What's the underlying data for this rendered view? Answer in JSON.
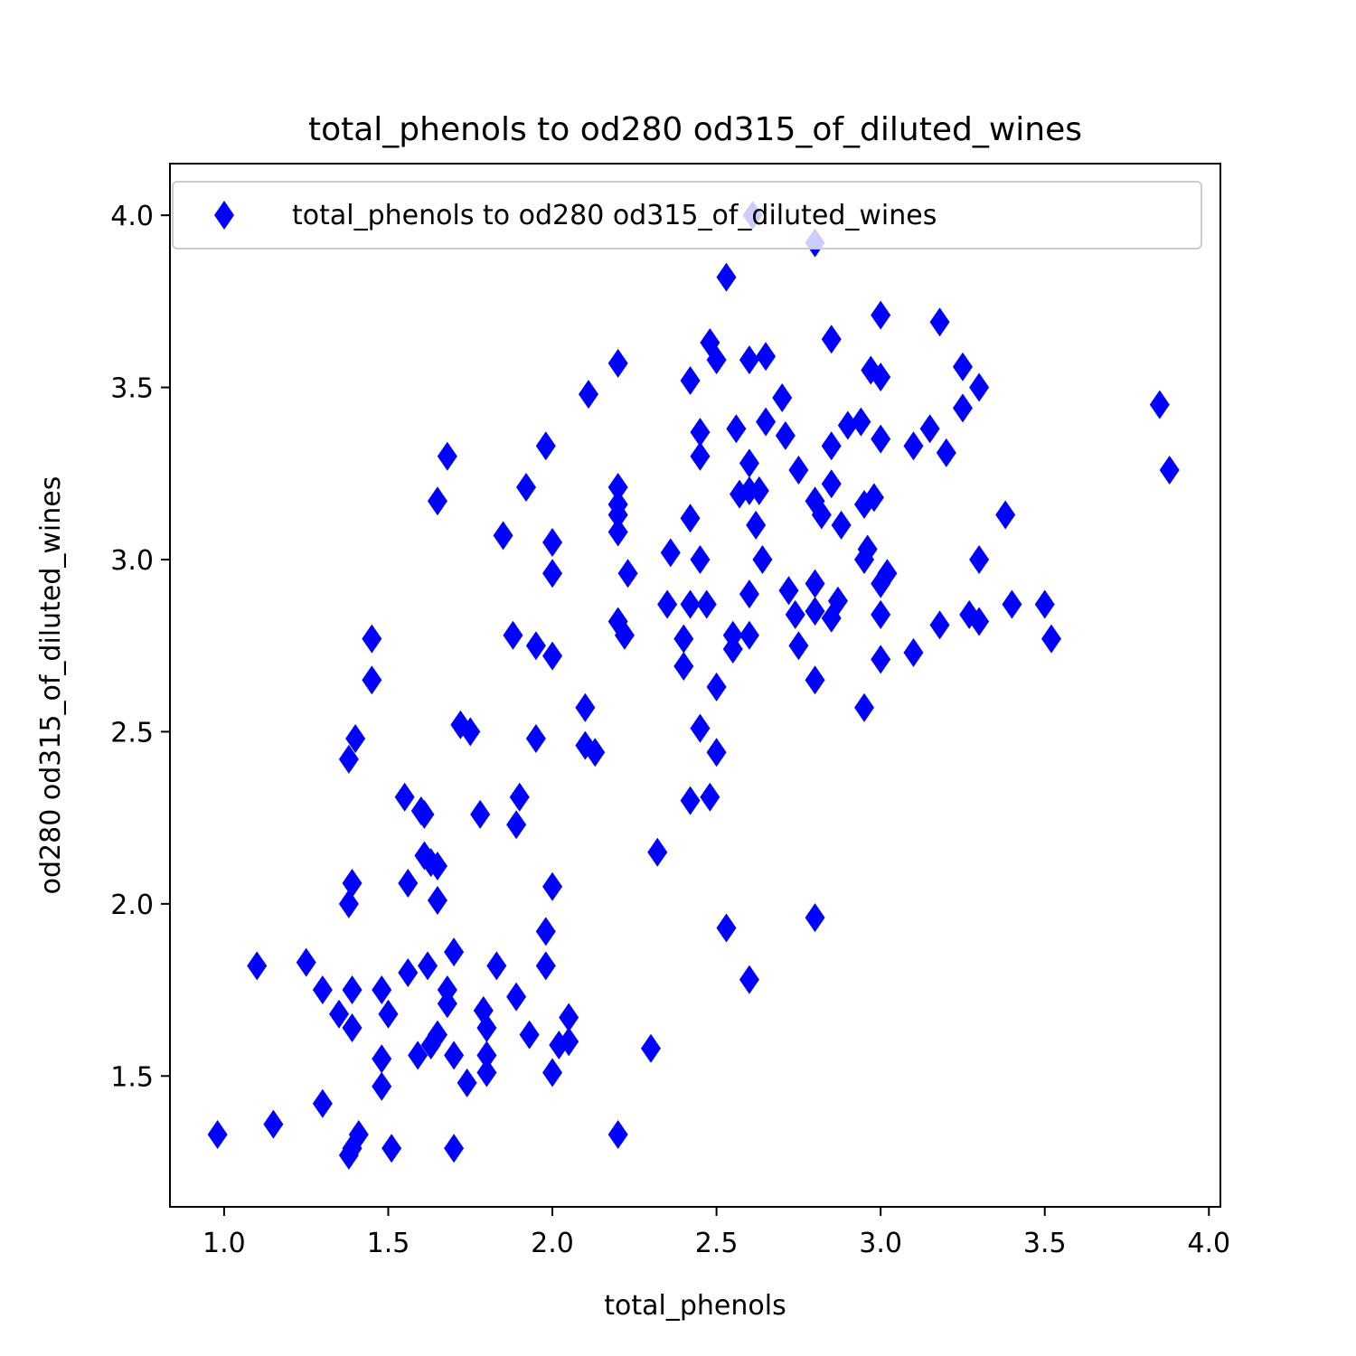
{
  "chart_data": {
    "type": "scatter",
    "title": "total_phenols to od280 od315_of_diluted_wines",
    "xlabel": "total_phenols",
    "ylabel": "od280 od315_of_diluted_wines",
    "xlim": [
      0.835,
      4.035
    ],
    "ylim": [
      1.12,
      4.15
    ],
    "xticks": [
      "1.0",
      "1.5",
      "2.0",
      "2.5",
      "3.0",
      "3.5",
      "4.0"
    ],
    "yticks": [
      "1.5",
      "2.0",
      "2.5",
      "3.0",
      "3.5",
      "4.0"
    ],
    "grid": false,
    "legend_position": "top-right",
    "marker": "thin-diamond",
    "colors": {
      "series": "#0000ff",
      "axes": "#000000",
      "background": "#ffffff"
    },
    "series": [
      {
        "name": "total_phenols to od280 od315_of_diluted_wines",
        "points": [
          [
            2.61,
            4.0
          ],
          [
            2.8,
            3.92
          ],
          [
            2.53,
            3.82
          ],
          [
            3.0,
            3.71
          ],
          [
            3.18,
            3.69
          ],
          [
            2.85,
            3.64
          ],
          [
            2.48,
            3.63
          ],
          [
            2.5,
            3.58
          ],
          [
            2.6,
            3.58
          ],
          [
            2.65,
            3.59
          ],
          [
            2.2,
            3.57
          ],
          [
            3.25,
            3.56
          ],
          [
            2.97,
            3.55
          ],
          [
            3.0,
            3.53
          ],
          [
            2.42,
            3.52
          ],
          [
            3.3,
            3.5
          ],
          [
            2.11,
            3.48
          ],
          [
            2.7,
            3.47
          ],
          [
            3.25,
            3.44
          ],
          [
            3.85,
            3.45
          ],
          [
            2.65,
            3.4
          ],
          [
            2.9,
            3.39
          ],
          [
            2.94,
            3.4
          ],
          [
            2.56,
            3.38
          ],
          [
            2.45,
            3.37
          ],
          [
            3.15,
            3.38
          ],
          [
            2.71,
            3.36
          ],
          [
            3.0,
            3.35
          ],
          [
            2.85,
            3.33
          ],
          [
            3.1,
            3.33
          ],
          [
            1.98,
            3.33
          ],
          [
            1.68,
            3.3
          ],
          [
            2.45,
            3.3
          ],
          [
            3.2,
            3.31
          ],
          [
            2.6,
            3.28
          ],
          [
            3.88,
            3.26
          ],
          [
            2.75,
            3.26
          ],
          [
            1.92,
            3.21
          ],
          [
            2.2,
            3.21
          ],
          [
            2.85,
            3.22
          ],
          [
            2.57,
            3.19
          ],
          [
            2.6,
            3.2
          ],
          [
            2.63,
            3.2
          ],
          [
            2.8,
            3.17
          ],
          [
            2.98,
            3.18
          ],
          [
            1.65,
            3.17
          ],
          [
            2.2,
            3.16
          ],
          [
            2.95,
            3.16
          ],
          [
            2.2,
            3.13
          ],
          [
            2.82,
            3.13
          ],
          [
            3.38,
            3.13
          ],
          [
            2.42,
            3.12
          ],
          [
            2.62,
            3.1
          ],
          [
            2.88,
            3.1
          ],
          [
            2.2,
            3.08
          ],
          [
            1.85,
            3.07
          ],
          [
            2.0,
            3.05
          ],
          [
            2.96,
            3.03
          ],
          [
            2.36,
            3.02
          ],
          [
            2.45,
            3.0
          ],
          [
            2.64,
            3.0
          ],
          [
            2.95,
            3.0
          ],
          [
            3.3,
            3.0
          ],
          [
            2.0,
            2.96
          ],
          [
            2.23,
            2.96
          ],
          [
            3.02,
            2.96
          ],
          [
            2.8,
            2.93
          ],
          [
            3.0,
            2.93
          ],
          [
            2.72,
            2.91
          ],
          [
            2.6,
            2.9
          ],
          [
            2.87,
            2.88
          ],
          [
            2.35,
            2.87
          ],
          [
            2.42,
            2.87
          ],
          [
            2.47,
            2.87
          ],
          [
            3.4,
            2.87
          ],
          [
            3.5,
            2.87
          ],
          [
            2.8,
            2.85
          ],
          [
            3.0,
            2.84
          ],
          [
            2.74,
            2.84
          ],
          [
            3.27,
            2.84
          ],
          [
            2.85,
            2.83
          ],
          [
            2.2,
            2.82
          ],
          [
            3.3,
            2.82
          ],
          [
            3.18,
            2.81
          ],
          [
            2.22,
            2.78
          ],
          [
            1.88,
            2.78
          ],
          [
            2.6,
            2.78
          ],
          [
            2.55,
            2.78
          ],
          [
            2.4,
            2.77
          ],
          [
            3.52,
            2.77
          ],
          [
            1.45,
            2.77
          ],
          [
            1.95,
            2.75
          ],
          [
            2.75,
            2.75
          ],
          [
            2.55,
            2.74
          ],
          [
            3.1,
            2.73
          ],
          [
            2.0,
            2.72
          ],
          [
            3.0,
            2.71
          ],
          [
            2.4,
            2.69
          ],
          [
            1.45,
            2.65
          ],
          [
            2.8,
            2.65
          ],
          [
            2.5,
            2.63
          ],
          [
            2.1,
            2.57
          ],
          [
            2.95,
            2.57
          ],
          [
            1.72,
            2.52
          ],
          [
            2.45,
            2.51
          ],
          [
            1.75,
            2.5
          ],
          [
            1.95,
            2.48
          ],
          [
            1.4,
            2.48
          ],
          [
            2.1,
            2.46
          ],
          [
            2.13,
            2.44
          ],
          [
            2.5,
            2.44
          ],
          [
            1.38,
            2.42
          ],
          [
            1.55,
            2.31
          ],
          [
            1.9,
            2.31
          ],
          [
            2.42,
            2.3
          ],
          [
            2.48,
            2.31
          ],
          [
            1.6,
            2.27
          ],
          [
            1.78,
            2.26
          ],
          [
            1.61,
            2.26
          ],
          [
            1.89,
            2.23
          ],
          [
            2.32,
            2.15
          ],
          [
            1.61,
            2.14
          ],
          [
            1.63,
            2.12
          ],
          [
            1.65,
            2.11
          ],
          [
            1.39,
            2.06
          ],
          [
            1.56,
            2.06
          ],
          [
            2.0,
            2.05
          ],
          [
            1.65,
            2.01
          ],
          [
            1.38,
            2.0
          ],
          [
            2.8,
            1.96
          ],
          [
            2.53,
            1.93
          ],
          [
            1.98,
            1.92
          ],
          [
            1.7,
            1.86
          ],
          [
            1.1,
            1.82
          ],
          [
            1.25,
            1.83
          ],
          [
            1.62,
            1.82
          ],
          [
            1.83,
            1.82
          ],
          [
            1.98,
            1.82
          ],
          [
            1.56,
            1.8
          ],
          [
            2.6,
            1.78
          ],
          [
            1.3,
            1.75
          ],
          [
            1.39,
            1.75
          ],
          [
            1.48,
            1.75
          ],
          [
            1.68,
            1.75
          ],
          [
            1.89,
            1.73
          ],
          [
            1.68,
            1.71
          ],
          [
            1.79,
            1.69
          ],
          [
            1.35,
            1.68
          ],
          [
            1.5,
            1.68
          ],
          [
            2.05,
            1.67
          ],
          [
            1.39,
            1.64
          ],
          [
            1.8,
            1.64
          ],
          [
            1.65,
            1.62
          ],
          [
            1.93,
            1.62
          ],
          [
            2.05,
            1.6
          ],
          [
            2.02,
            1.59
          ],
          [
            1.63,
            1.59
          ],
          [
            1.59,
            1.56
          ],
          [
            1.8,
            1.56
          ],
          [
            1.7,
            1.56
          ],
          [
            1.48,
            1.55
          ],
          [
            2.3,
            1.58
          ],
          [
            1.8,
            1.51
          ],
          [
            2.0,
            1.51
          ],
          [
            1.74,
            1.48
          ],
          [
            1.48,
            1.47
          ],
          [
            1.3,
            1.42
          ],
          [
            1.15,
            1.36
          ],
          [
            0.98,
            1.33
          ],
          [
            1.41,
            1.33
          ],
          [
            2.2,
            1.33
          ],
          [
            1.39,
            1.29
          ],
          [
            1.51,
            1.29
          ],
          [
            1.7,
            1.29
          ],
          [
            1.38,
            1.27
          ]
        ]
      }
    ]
  }
}
